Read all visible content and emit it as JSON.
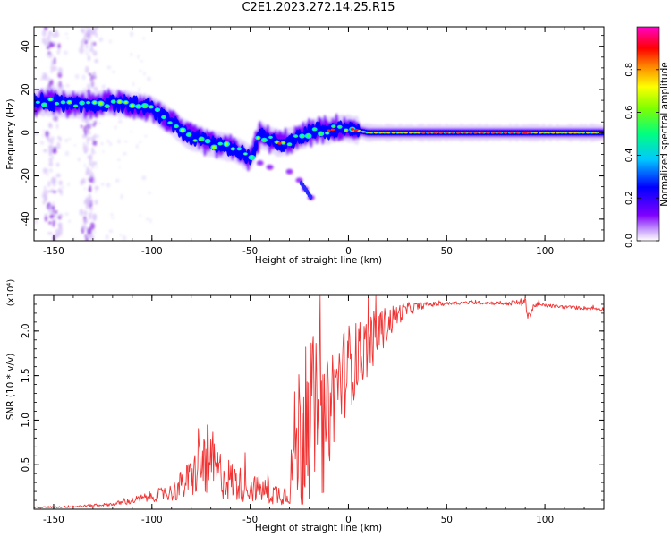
{
  "title": "C2E1.2023.272.14.25.R15",
  "chart_data": [
    {
      "type": "heatmap",
      "xlabel": "Height of straight line (km)",
      "ylabel": "Frequency (Hz)",
      "xlim": [
        -160,
        130
      ],
      "ylim": [
        -50,
        49
      ],
      "x_ticks": [
        -150,
        -100,
        -50,
        0,
        50,
        100
      ],
      "y_ticks": [
        -40,
        -20,
        0,
        20,
        40
      ],
      "colorbar": {
        "label": "Normalized spectral amplitude",
        "range": [
          0,
          1
        ],
        "ticks": [
          "0.0",
          "0.2",
          "0.4",
          "0.6",
          "0.8"
        ],
        "colors": [
          "#ffffff",
          "#7f00ff",
          "#0000ff",
          "#00ffff",
          "#00ff00",
          "#ffff00",
          "#ff0000",
          "#ff00ff"
        ]
      },
      "ridge": {
        "x": [
          -160,
          -150,
          -140,
          -130,
          -120,
          -110,
          -100,
          -95,
          -90,
          -85,
          -80,
          -75,
          -70,
          -65,
          -60,
          -55,
          -50,
          -45,
          -40,
          -35,
          -30,
          -25,
          -20,
          -15,
          -10,
          -5,
          0,
          5,
          10,
          20,
          40,
          60,
          80,
          100,
          130
        ],
        "frequency": [
          14,
          14,
          13,
          13,
          14,
          13,
          11,
          8,
          5,
          1,
          -2,
          -3,
          -5,
          -6,
          -7,
          -9,
          -12,
          -1,
          -3,
          -5,
          -4,
          -2,
          0,
          1,
          1,
          2,
          2,
          1,
          0,
          0,
          0,
          0,
          0,
          0,
          0
        ]
      },
      "offshoot": {
        "x": [
          -50,
          -45,
          -40,
          -30,
          -25,
          -22,
          -19
        ],
        "frequency": [
          -12,
          -14,
          -16,
          -18,
          -22,
          -26,
          -30
        ]
      }
    },
    {
      "type": "line",
      "xlabel": "Height of straight line (km)",
      "ylabel": "SNR (10 * v/v)",
      "scale_label": "(x10⁴)",
      "xlim": [
        -160,
        130
      ],
      "ylim": [
        0,
        2.4
      ],
      "x_ticks": [
        -150,
        -100,
        -50,
        0,
        50,
        100
      ],
      "y_ticks": [
        "0.5",
        "1.0",
        "1.5",
        "2.0"
      ],
      "color": "#f03232",
      "series": [
        {
          "x": [
            -160,
            -140,
            -120,
            -110,
            -100,
            -90,
            -85,
            -80,
            -75,
            -72,
            -70,
            -65,
            -60,
            -55,
            -50,
            -45,
            -40,
            -35,
            -30,
            -28,
            -25,
            -22,
            -20,
            -18,
            -15,
            -12,
            -10,
            -8,
            -5,
            0,
            5,
            10,
            15,
            20,
            25,
            30,
            35,
            40,
            50,
            60,
            70,
            80,
            90,
            92,
            95,
            100,
            110,
            120,
            130
          ],
          "values": [
            0.02,
            0.03,
            0.06,
            0.1,
            0.15,
            0.2,
            0.28,
            0.38,
            0.52,
            0.62,
            0.5,
            0.42,
            0.35,
            0.3,
            0.26,
            0.24,
            0.2,
            0.18,
            0.2,
            0.7,
            0.95,
            1.05,
            1.2,
            1.15,
            1.1,
            0.9,
            1.2,
            1.35,
            1.5,
            1.65,
            1.75,
            1.88,
            2.0,
            2.1,
            2.2,
            2.25,
            2.28,
            2.3,
            2.31,
            2.32,
            2.32,
            2.31,
            2.33,
            2.18,
            2.3,
            2.29,
            2.27,
            2.26,
            2.25
          ],
          "noise": [
            0.01,
            0.01,
            0.02,
            0.04,
            0.06,
            0.1,
            0.18,
            0.22,
            0.35,
            0.45,
            0.32,
            0.28,
            0.24,
            0.2,
            0.16,
            0.15,
            0.14,
            0.12,
            0.14,
            0.6,
            0.9,
            1.05,
            1.0,
            0.9,
            0.8,
            0.7,
            0.7,
            0.6,
            0.55,
            0.5,
            0.4,
            0.35,
            0.28,
            0.2,
            0.12,
            0.08,
            0.05,
            0.03,
            0.02,
            0.02,
            0.02,
            0.02,
            0.05,
            0.1,
            0.03,
            0.02,
            0.02,
            0.02,
            0.02
          ]
        }
      ]
    }
  ]
}
